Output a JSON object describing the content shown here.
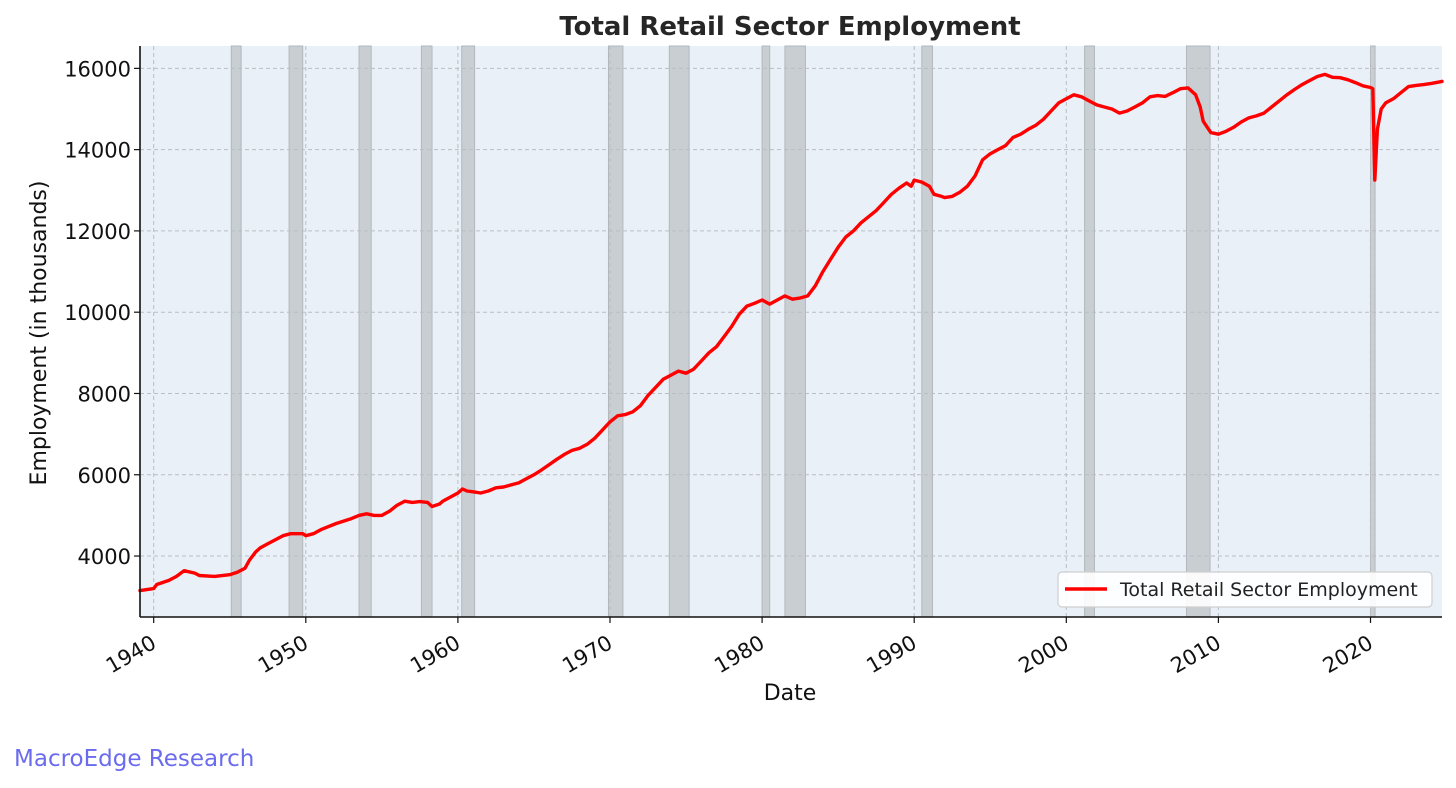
{
  "chart_data": {
    "type": "line",
    "title": "Total Retail Sector Employment",
    "xlabel": "Date",
    "ylabel": "Employment (in thousands)",
    "xlim": [
      1939.1,
      2024.7
    ],
    "ylim": [
      2500,
      16550
    ],
    "x_ticks": [
      1940,
      1950,
      1960,
      1970,
      1980,
      1990,
      2000,
      2010,
      2020
    ],
    "y_ticks": [
      4000,
      6000,
      8000,
      10000,
      12000,
      14000,
      16000
    ],
    "grid": true,
    "legend_position": "lower-right",
    "series": [
      {
        "name": "Total Retail Sector Employment",
        "color": "#ff0000",
        "points": [
          [
            1939.1,
            3150
          ],
          [
            1940.0,
            3200
          ],
          [
            1940.2,
            3300
          ],
          [
            1941.0,
            3400
          ],
          [
            1941.5,
            3500
          ],
          [
            1942.0,
            3640
          ],
          [
            1942.7,
            3580
          ],
          [
            1943.0,
            3520
          ],
          [
            1944.0,
            3500
          ],
          [
            1945.0,
            3540
          ],
          [
            1945.5,
            3600
          ],
          [
            1946.0,
            3700
          ],
          [
            1946.3,
            3900
          ],
          [
            1946.7,
            4100
          ],
          [
            1947.0,
            4200
          ],
          [
            1947.5,
            4300
          ],
          [
            1948.0,
            4400
          ],
          [
            1948.5,
            4500
          ],
          [
            1949.0,
            4550
          ],
          [
            1949.8,
            4550
          ],
          [
            1950.0,
            4500
          ],
          [
            1950.5,
            4550
          ],
          [
            1951.0,
            4650
          ],
          [
            1952.0,
            4800
          ],
          [
            1953.0,
            4920
          ],
          [
            1953.5,
            5000
          ],
          [
            1954.0,
            5040
          ],
          [
            1954.5,
            5000
          ],
          [
            1955.0,
            5000
          ],
          [
            1955.5,
            5100
          ],
          [
            1956.0,
            5250
          ],
          [
            1956.5,
            5350
          ],
          [
            1957.0,
            5320
          ],
          [
            1957.5,
            5340
          ],
          [
            1958.0,
            5320
          ],
          [
            1958.3,
            5220
          ],
          [
            1958.8,
            5280
          ],
          [
            1959.0,
            5350
          ],
          [
            1959.5,
            5450
          ],
          [
            1960.0,
            5550
          ],
          [
            1960.3,
            5650
          ],
          [
            1960.6,
            5600
          ],
          [
            1961.0,
            5580
          ],
          [
            1961.5,
            5550
          ],
          [
            1962.0,
            5600
          ],
          [
            1962.5,
            5680
          ],
          [
            1963.0,
            5700
          ],
          [
            1963.5,
            5750
          ],
          [
            1964.0,
            5800
          ],
          [
            1964.5,
            5900
          ],
          [
            1965.0,
            6000
          ],
          [
            1965.5,
            6120
          ],
          [
            1966.0,
            6250
          ],
          [
            1966.5,
            6380
          ],
          [
            1967.0,
            6500
          ],
          [
            1967.5,
            6600
          ],
          [
            1968.0,
            6650
          ],
          [
            1968.5,
            6750
          ],
          [
            1969.0,
            6900
          ],
          [
            1969.5,
            7100
          ],
          [
            1970.0,
            7300
          ],
          [
            1970.5,
            7450
          ],
          [
            1971.0,
            7480
          ],
          [
            1971.5,
            7550
          ],
          [
            1972.0,
            7700
          ],
          [
            1972.5,
            7950
          ],
          [
            1973.0,
            8150
          ],
          [
            1973.5,
            8350
          ],
          [
            1974.0,
            8450
          ],
          [
            1974.5,
            8550
          ],
          [
            1975.0,
            8500
          ],
          [
            1975.5,
            8600
          ],
          [
            1976.0,
            8800
          ],
          [
            1976.5,
            9000
          ],
          [
            1977.0,
            9150
          ],
          [
            1977.5,
            9400
          ],
          [
            1978.0,
            9650
          ],
          [
            1978.5,
            9950
          ],
          [
            1979.0,
            10150
          ],
          [
            1979.5,
            10220
          ],
          [
            1980.0,
            10300
          ],
          [
            1980.5,
            10200
          ],
          [
            1981.0,
            10300
          ],
          [
            1981.5,
            10400
          ],
          [
            1982.0,
            10320
          ],
          [
            1982.5,
            10350
          ],
          [
            1983.0,
            10400
          ],
          [
            1983.5,
            10650
          ],
          [
            1984.0,
            11000
          ],
          [
            1984.5,
            11300
          ],
          [
            1985.0,
            11600
          ],
          [
            1985.5,
            11850
          ],
          [
            1986.0,
            12000
          ],
          [
            1986.5,
            12200
          ],
          [
            1987.0,
            12350
          ],
          [
            1987.5,
            12500
          ],
          [
            1988.0,
            12700
          ],
          [
            1988.5,
            12900
          ],
          [
            1989.0,
            13050
          ],
          [
            1989.5,
            13180
          ],
          [
            1989.8,
            13100
          ],
          [
            1990.0,
            13250
          ],
          [
            1990.5,
            13200
          ],
          [
            1991.0,
            13100
          ],
          [
            1991.3,
            12900
          ],
          [
            1991.8,
            12850
          ],
          [
            1992.0,
            12820
          ],
          [
            1992.5,
            12850
          ],
          [
            1993.0,
            12950
          ],
          [
            1993.5,
            13100
          ],
          [
            1994.0,
            13350
          ],
          [
            1994.5,
            13750
          ],
          [
            1995.0,
            13900
          ],
          [
            1995.5,
            14000
          ],
          [
            1996.0,
            14100
          ],
          [
            1996.5,
            14300
          ],
          [
            1997.0,
            14380
          ],
          [
            1997.5,
            14500
          ],
          [
            1998.0,
            14600
          ],
          [
            1998.5,
            14750
          ],
          [
            1999.0,
            14950
          ],
          [
            1999.5,
            15150
          ],
          [
            2000.0,
            15250
          ],
          [
            2000.5,
            15350
          ],
          [
            2001.0,
            15300
          ],
          [
            2001.5,
            15200
          ],
          [
            2002.0,
            15100
          ],
          [
            2002.5,
            15050
          ],
          [
            2003.0,
            15000
          ],
          [
            2003.5,
            14900
          ],
          [
            2004.0,
            14950
          ],
          [
            2004.5,
            15050
          ],
          [
            2005.0,
            15150
          ],
          [
            2005.5,
            15300
          ],
          [
            2006.0,
            15330
          ],
          [
            2006.5,
            15310
          ],
          [
            2007.0,
            15400
          ],
          [
            2007.5,
            15500
          ],
          [
            2008.0,
            15520
          ],
          [
            2008.5,
            15350
          ],
          [
            2008.8,
            15050
          ],
          [
            2009.0,
            14700
          ],
          [
            2009.5,
            14420
          ],
          [
            2010.0,
            14380
          ],
          [
            2010.5,
            14450
          ],
          [
            2011.0,
            14550
          ],
          [
            2011.5,
            14680
          ],
          [
            2012.0,
            14780
          ],
          [
            2012.5,
            14830
          ],
          [
            2013.0,
            14900
          ],
          [
            2013.5,
            15050
          ],
          [
            2014.0,
            15200
          ],
          [
            2014.5,
            15350
          ],
          [
            2015.0,
            15480
          ],
          [
            2015.5,
            15600
          ],
          [
            2016.0,
            15700
          ],
          [
            2016.5,
            15800
          ],
          [
            2017.0,
            15850
          ],
          [
            2017.5,
            15780
          ],
          [
            2018.0,
            15770
          ],
          [
            2018.5,
            15720
          ],
          [
            2019.0,
            15650
          ],
          [
            2019.5,
            15570
          ],
          [
            2020.0,
            15530
          ],
          [
            2020.15,
            15500
          ],
          [
            2020.28,
            13250
          ],
          [
            2020.45,
            14500
          ],
          [
            2020.7,
            15000
          ],
          [
            2021.0,
            15150
          ],
          [
            2021.5,
            15250
          ],
          [
            2022.0,
            15400
          ],
          [
            2022.5,
            15550
          ],
          [
            2023.0,
            15580
          ],
          [
            2023.5,
            15600
          ],
          [
            2024.0,
            15630
          ],
          [
            2024.7,
            15680
          ]
        ]
      }
    ],
    "shaded_periods": [
      [
        1945.1,
        1945.75
      ],
      [
        1948.9,
        1949.8
      ],
      [
        1953.5,
        1954.3
      ],
      [
        1957.6,
        1958.3
      ],
      [
        1960.25,
        1961.1
      ],
      [
        1969.9,
        1970.85
      ],
      [
        1973.9,
        1975.2
      ],
      [
        1980.0,
        1980.5
      ],
      [
        1981.5,
        1982.85
      ],
      [
        1990.5,
        1991.2
      ],
      [
        2001.2,
        2001.85
      ],
      [
        2007.9,
        2009.45
      ],
      [
        2020.0,
        2020.3
      ]
    ],
    "colors": {
      "line": "#ff0000",
      "plot_background": "#eaf0f7",
      "shading": "#c9ced3",
      "grid": "#b9bec4"
    }
  },
  "watermark": "MacroEdge Research"
}
